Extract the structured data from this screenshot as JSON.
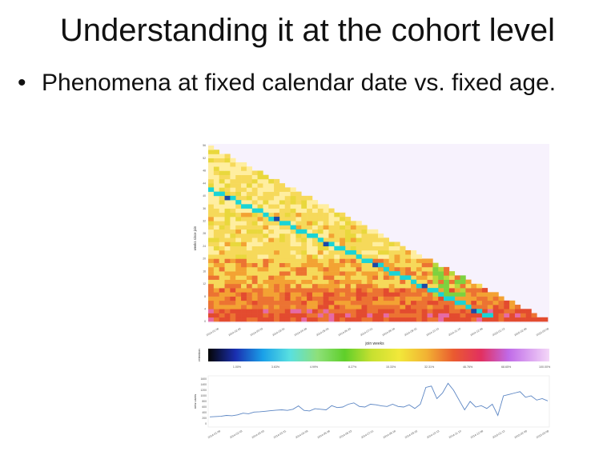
{
  "slide": {
    "title": "Understanding it at the cohort level",
    "bullet": "Phenomena at fixed calendar date vs. fixed age."
  },
  "figure": {
    "xlabel": "join weeks",
    "ylabel": "weeks since join",
    "date_labels": [
      "2014-01-06",
      "2014-02-03",
      "2014-03-03",
      "2014-03-31",
      "2014-04-28",
      "2014-05-26",
      "2014-06-23",
      "2014-07-21",
      "2014-08-18",
      "2014-09-15",
      "2014-10-13",
      "2014-11-10",
      "2014-12-08",
      "2015-01-12",
      "2015-02-09",
      "2015-03-09"
    ],
    "colorbar_label": "retention",
    "colorbar_ticks": [
      "1.00%",
      "3.63%",
      "4.99%",
      "8.27%",
      "15.33%",
      "32.31%",
      "46.76%",
      "68.65%",
      "100.00%"
    ],
    "lower_ylabel": "new users",
    "lower_yticks": [
      "1600",
      "1400",
      "1200",
      "1000",
      "800",
      "600",
      "400",
      "200",
      "0"
    ],
    "heatmap_colors": [
      "#f7f2fd",
      "#ffeea0",
      "#f6d95a",
      "#e9d83c",
      "#b7d83a",
      "#7ed13f",
      "#f3a233",
      "#ec7332",
      "#e34b2f",
      "#e66aa4",
      "#1b49a8",
      "#19d4d6"
    ]
  },
  "chart_data": [
    {
      "type": "line",
      "title": "",
      "xlabel": "",
      "ylabel": "new users",
      "ylim": [
        0,
        1600
      ],
      "x": [
        "2014-01-06",
        "2014-01-13",
        "2014-01-20",
        "2014-01-27",
        "2014-02-03",
        "2014-02-10",
        "2014-02-17",
        "2014-02-24",
        "2014-03-03",
        "2014-03-10",
        "2014-03-17",
        "2014-03-24",
        "2014-03-31",
        "2014-04-07",
        "2014-04-14",
        "2014-04-21",
        "2014-04-28",
        "2014-05-05",
        "2014-05-12",
        "2014-05-19",
        "2014-05-26",
        "2014-06-02",
        "2014-06-09",
        "2014-06-16",
        "2014-06-23",
        "2014-06-30",
        "2014-07-07",
        "2014-07-14",
        "2014-07-21",
        "2014-07-28",
        "2014-08-04",
        "2014-08-11",
        "2014-08-18",
        "2014-08-25",
        "2014-09-01",
        "2014-09-08",
        "2014-09-15",
        "2014-09-22",
        "2014-09-29",
        "2014-10-06",
        "2014-10-13",
        "2014-10-20",
        "2014-10-27",
        "2014-11-03",
        "2014-11-10",
        "2014-11-17",
        "2014-11-24",
        "2014-12-01",
        "2014-12-08",
        "2014-12-15",
        "2014-12-22",
        "2014-12-29",
        "2015-01-05",
        "2015-01-12",
        "2015-01-19",
        "2015-01-26",
        "2015-02-02",
        "2015-02-09",
        "2015-02-16",
        "2015-02-23",
        "2015-03-02",
        "2015-03-09"
      ],
      "series": [
        {
          "values": [
            250,
            260,
            270,
            300,
            290,
            320,
            380,
            360,
            420,
            430,
            450,
            470,
            490,
            500,
            480,
            520,
            640,
            480,
            460,
            540,
            520,
            500,
            650,
            580,
            600,
            700,
            750,
            620,
            600,
            700,
            680,
            640,
            620,
            700,
            620,
            600,
            680,
            550,
            700,
            1300,
            1350,
            900,
            1100,
            1450,
            1200,
            850,
            500,
            800,
            600,
            650,
            550,
            700,
            300,
            1000,
            1050,
            1100,
            1150,
            950,
            1000,
            850,
            900,
            820
          ]
        }
      ]
    },
    {
      "type": "heatmap",
      "title": "",
      "xlabel": "join weeks",
      "ylabel": "weeks since join",
      "categories": [
        "2014-01-06",
        "2014-02-03",
        "2014-03-03",
        "2014-03-31",
        "2014-04-28",
        "2014-05-26",
        "2014-06-23",
        "2014-07-21",
        "2014-08-18",
        "2014-09-15",
        "2014-10-13",
        "2014-11-10",
        "2014-12-08",
        "2015-01-12",
        "2015-02-09",
        "2015-03-09"
      ],
      "colorbar_label": "retention",
      "colorbar_ticks": [
        "1.00%",
        "3.63%",
        "4.99%",
        "8.27%",
        "15.33%",
        "32.31%",
        "46.76%",
        "68.65%",
        "100.00%"
      ],
      "note_values": "upper-left triangle of cohort cells; low weeks-since-join rows are high retention (red), later rows mostly yellow/green"
    }
  ]
}
